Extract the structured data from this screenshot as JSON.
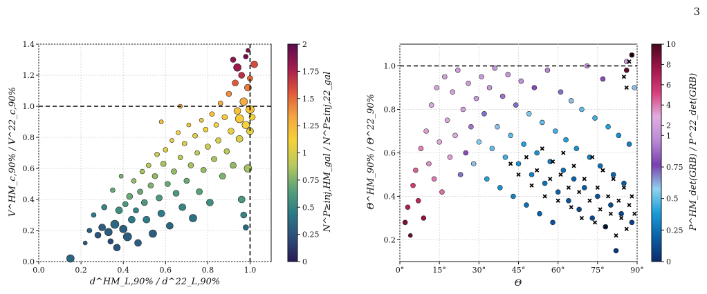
{
  "page": {
    "number": "3"
  },
  "chart_data": [
    {
      "type": "scatter",
      "title": "",
      "xlabel": "d^HM_L,90% / d^22_L,90%",
      "ylabel": "V^HM_c,90% / V^22_c,90%",
      "xlim": [
        0.0,
        1.1
      ],
      "ylim": [
        0.0,
        1.4
      ],
      "xticks": [
        "0.0",
        "0.2",
        "0.4",
        "0.6",
        "0.8",
        "1.0"
      ],
      "yticks": [
        "0.0",
        "0.2",
        "0.4",
        "0.6",
        "0.8",
        "1.0",
        "1.2",
        "1.4"
      ],
      "reference_lines": {
        "x": 1.0,
        "y": 1.0,
        "style": "dashed"
      },
      "grid": true,
      "colorbar": {
        "label": "N^P≥inj,HM_gal / N^P≥inj,22_gal",
        "range": [
          0,
          2
        ],
        "ticks": [
          "0",
          "0.25",
          "0.5",
          "0.75",
          "1",
          "1.25",
          "1.5",
          "1.75",
          "2"
        ],
        "colormap": [
          "#2a1a55",
          "#2d4d7a",
          "#2b7a86",
          "#5aa37a",
          "#b9c95b",
          "#f6d23a",
          "#f4a640",
          "#e0573b",
          "#a21c4e",
          "#5c0b4d"
        ]
      },
      "points": [
        [
          0.15,
          0.02,
          0.35,
          9
        ],
        [
          0.22,
          0.12,
          0.3,
          4
        ],
        [
          0.24,
          0.2,
          0.3,
          5
        ],
        [
          0.28,
          0.17,
          0.25,
          7
        ],
        [
          0.3,
          0.22,
          0.3,
          8
        ],
        [
          0.33,
          0.19,
          0.3,
          9
        ],
        [
          0.34,
          0.13,
          0.2,
          6
        ],
        [
          0.36,
          0.24,
          0.35,
          10
        ],
        [
          0.37,
          0.09,
          0.25,
          8
        ],
        [
          0.38,
          0.33,
          0.55,
          8
        ],
        [
          0.4,
          0.21,
          0.3,
          9
        ],
        [
          0.41,
          0.37,
          0.6,
          6
        ],
        [
          0.42,
          0.16,
          0.3,
          10
        ],
        [
          0.43,
          0.42,
          0.7,
          7
        ],
        [
          0.44,
          0.27,
          0.45,
          8
        ],
        [
          0.45,
          0.52,
          0.8,
          5
        ],
        [
          0.46,
          0.33,
          0.5,
          6
        ],
        [
          0.47,
          0.12,
          0.3,
          8
        ],
        [
          0.48,
          0.45,
          0.7,
          6
        ],
        [
          0.49,
          0.58,
          0.85,
          5
        ],
        [
          0.5,
          0.38,
          0.6,
          7
        ],
        [
          0.51,
          0.27,
          0.45,
          8
        ],
        [
          0.52,
          0.62,
          0.9,
          5
        ],
        [
          0.53,
          0.49,
          0.75,
          6
        ],
        [
          0.54,
          0.18,
          0.3,
          9
        ],
        [
          0.55,
          0.55,
          0.8,
          6
        ],
        [
          0.56,
          0.69,
          0.95,
          5
        ],
        [
          0.57,
          0.41,
          0.6,
          7
        ],
        [
          0.58,
          0.31,
          0.45,
          8
        ],
        [
          0.59,
          0.63,
          0.85,
          6
        ],
        [
          0.6,
          0.72,
          1.0,
          5
        ],
        [
          0.61,
          0.5,
          0.7,
          6
        ],
        [
          0.62,
          0.23,
          0.35,
          8
        ],
        [
          0.63,
          0.78,
          1.05,
          4
        ],
        [
          0.64,
          0.58,
          0.8,
          6
        ],
        [
          0.65,
          0.44,
          0.6,
          7
        ],
        [
          0.66,
          0.83,
          1.1,
          4
        ],
        [
          0.67,
          0.67,
          0.9,
          5
        ],
        [
          0.68,
          0.35,
          0.5,
          8
        ],
        [
          0.69,
          0.76,
          1.0,
          5
        ],
        [
          0.7,
          0.52,
          0.7,
          6
        ],
        [
          0.71,
          0.88,
          1.15,
          4
        ],
        [
          0.72,
          0.62,
          0.85,
          6
        ],
        [
          0.73,
          0.28,
          0.4,
          9
        ],
        [
          0.74,
          0.81,
          1.05,
          5
        ],
        [
          0.75,
          0.7,
          0.9,
          5
        ],
        [
          0.76,
          0.45,
          0.65,
          7
        ],
        [
          0.77,
          0.91,
          1.15,
          4
        ],
        [
          0.78,
          0.59,
          0.8,
          6
        ],
        [
          0.79,
          0.85,
          1.1,
          5
        ],
        [
          0.8,
          0.74,
          0.95,
          6
        ],
        [
          0.81,
          0.38,
          0.55,
          8
        ],
        [
          0.82,
          0.95,
          1.2,
          5
        ],
        [
          0.83,
          0.66,
          0.85,
          6
        ],
        [
          0.84,
          0.88,
          1.1,
          5
        ],
        [
          0.85,
          0.78,
          1.0,
          6
        ],
        [
          0.86,
          1.02,
          1.3,
          5
        ],
        [
          0.87,
          0.55,
          0.75,
          7
        ],
        [
          0.88,
          0.93,
          1.15,
          6
        ],
        [
          0.89,
          0.71,
          0.9,
          6
        ],
        [
          0.9,
          1.08,
          1.4,
          6
        ],
        [
          0.91,
          0.84,
          1.05,
          7
        ],
        [
          0.92,
          0.62,
          0.8,
          7
        ],
        [
          0.93,
          1.15,
          1.55,
          7
        ],
        [
          0.94,
          0.97,
          1.2,
          8
        ],
        [
          0.95,
          0.79,
          1.0,
          8
        ],
        [
          0.96,
          1.2,
          1.7,
          7
        ],
        [
          0.97,
          1.03,
          1.3,
          9
        ],
        [
          0.98,
          0.88,
          1.1,
          9
        ],
        [
          0.99,
          1.12,
          1.45,
          8
        ],
        [
          0.96,
          0.4,
          0.6,
          8
        ],
        [
          0.97,
          0.3,
          0.5,
          7
        ],
        [
          0.98,
          0.22,
          0.35,
          6
        ],
        [
          0.99,
          0.6,
          0.85,
          9
        ],
        [
          0.95,
          0.92,
          1.15,
          10
        ],
        [
          0.94,
          1.25,
          1.8,
          9
        ],
        [
          1.0,
          1.18,
          1.5,
          6
        ],
        [
          1.02,
          1.27,
          1.6,
          8
        ],
        [
          0.98,
          1.32,
          1.95,
          5
        ],
        [
          0.92,
          1.3,
          1.85,
          6
        ],
        [
          1.0,
          0.98,
          1.2,
          10
        ],
        [
          1.01,
          0.93,
          1.1,
          7
        ],
        [
          1.0,
          0.84,
          1.05,
          8
        ],
        [
          0.99,
          1.36,
          1.9,
          4
        ],
        [
          0.26,
          0.3,
          0.45,
          5
        ],
        [
          0.31,
          0.35,
          0.5,
          6
        ],
        [
          0.35,
          0.46,
          0.7,
          5
        ],
        [
          0.39,
          0.55,
          0.75,
          4
        ],
        [
          0.58,
          0.9,
          1.2,
          4
        ],
        [
          0.67,
          1.0,
          1.3,
          4
        ]
      ]
    },
    {
      "type": "scatter",
      "title": "",
      "xlabel": "Θ",
      "ylabel": "Θ^HM_90% / Θ^22_90%",
      "xlim": [
        0,
        90
      ],
      "ylim": [
        0.1,
        1.1
      ],
      "xticks": [
        "0°",
        "15°",
        "30°",
        "45°",
        "60°",
        "75°",
        "90°"
      ],
      "yticks": [
        "0.2",
        "0.4",
        "0.6",
        "0.8",
        "1.0"
      ],
      "reference_lines": {
        "y": 1.0,
        "style": "dashed"
      },
      "grid": true,
      "colorbar": {
        "label": "P^HM_det(GRB) / P^22_det(GRB)",
        "range": [
          0,
          10
        ],
        "ticks": [
          "0",
          "0.25",
          "0.5",
          "0.75",
          "1",
          "2",
          "4",
          "6",
          "8",
          "10"
        ],
        "colormap": [
          "#0a2a6b",
          "#0a5fa6",
          "#1a9bd8",
          "#8fd3f0",
          "#7a3fb0",
          "#b98ad6",
          "#e0aee0",
          "#d83d7a",
          "#a0154a",
          "#4a0820"
        ]
      },
      "points": [
        [
          2,
          0.28,
          8.5,
          5
        ],
        [
          3,
          0.35,
          7.0,
          5
        ],
        [
          4,
          0.22,
          9.0,
          4
        ],
        [
          5,
          0.45,
          5.5,
          5
        ],
        [
          6,
          0.52,
          4.5,
          5
        ],
        [
          7,
          0.38,
          6.5,
          5
        ],
        [
          8,
          0.62,
          3.8,
          5
        ],
        [
          9,
          0.3,
          8.0,
          5
        ],
        [
          10,
          0.7,
          3.2,
          5
        ],
        [
          11,
          0.55,
          3.5,
          5
        ],
        [
          12,
          0.82,
          2.5,
          5
        ],
        [
          13,
          0.48,
          4.0,
          5
        ],
        [
          14,
          0.9,
          2.2,
          5
        ],
        [
          15,
          0.65,
          3.0,
          5
        ],
        [
          16,
          0.42,
          4.2,
          5
        ],
        [
          17,
          0.95,
          2.0,
          5
        ],
        [
          18,
          0.75,
          2.6,
          5
        ],
        [
          19,
          0.58,
          3.2,
          5
        ],
        [
          20,
          0.88,
          2.1,
          5
        ],
        [
          21,
          0.68,
          2.8,
          5
        ],
        [
          22,
          0.98,
          1.8,
          5
        ],
        [
          23,
          0.5,
          0.7,
          5
        ],
        [
          24,
          0.8,
          2.0,
          5
        ],
        [
          25,
          0.6,
          0.8,
          5
        ],
        [
          26,
          0.92,
          1.7,
          5
        ],
        [
          27,
          0.72,
          0.9,
          5
        ],
        [
          28,
          0.55,
          0.6,
          5
        ],
        [
          29,
          0.85,
          1.5,
          5
        ],
        [
          30,
          0.65,
          0.55,
          5
        ],
        [
          31,
          0.95,
          1.6,
          5
        ],
        [
          32,
          0.78,
          0.7,
          5
        ],
        [
          33,
          0.48,
          0.4,
          5
        ],
        [
          34,
          0.9,
          1.3,
          5
        ],
        [
          35,
          0.62,
          0.5,
          5
        ],
        [
          36,
          0.99,
          1.5,
          5
        ],
        [
          37,
          0.72,
          0.6,
          5
        ],
        [
          38,
          0.44,
          0.35,
          5
        ],
        [
          39,
          0.86,
          0.9,
          5
        ],
        [
          40,
          0.58,
          0.45,
          5
        ],
        [
          41,
          0.96,
          1.2,
          5
        ],
        [
          42,
          0.68,
          0.5,
          5
        ],
        [
          43,
          0.4,
          0.3,
          5
        ],
        [
          44,
          0.82,
          0.7,
          5
        ],
        [
          45,
          0.55,
          0.35,
          5
        ],
        [
          46,
          0.93,
          1.1,
          5
        ],
        [
          47,
          0.64,
          0.4,
          5
        ],
        [
          48,
          0.36,
          0.25,
          5
        ],
        [
          49,
          0.78,
          0.55,
          5
        ],
        [
          50,
          0.5,
          0.3,
          5
        ],
        [
          51,
          0.9,
          0.8,
          5
        ],
        [
          52,
          0.6,
          0.35,
          5
        ],
        [
          53,
          0.32,
          0.2,
          5
        ],
        [
          54,
          0.74,
          0.5,
          5
        ],
        [
          55,
          0.46,
          0.25,
          5
        ],
        [
          56,
          0.98,
          0.95,
          5
        ],
        [
          57,
          0.56,
          0.3,
          5
        ],
        [
          58,
          0.28,
          0.15,
          5
        ],
        [
          59,
          0.7,
          0.45,
          5
        ],
        [
          60,
          0.42,
          0.2,
          5
        ],
        [
          61,
          0.88,
          0.7,
          5
        ],
        [
          62,
          0.52,
          0.25,
          5
        ],
        [
          63,
          0.66,
          0.4,
          5
        ],
        [
          64,
          0.38,
          0.15,
          5
        ],
        [
          65,
          0.84,
          0.6,
          5
        ],
        [
          66,
          0.48,
          0.2,
          5
        ],
        [
          67,
          0.62,
          0.35,
          5
        ],
        [
          68,
          0.34,
          0.12,
          5
        ],
        [
          69,
          0.8,
          0.5,
          5
        ],
        [
          70,
          0.44,
          0.18,
          5
        ],
        [
          71,
          1.0,
          1.0,
          5
        ],
        [
          72,
          0.58,
          0.3,
          5
        ],
        [
          73,
          0.3,
          0.1,
          5
        ],
        [
          74,
          0.76,
          0.45,
          5
        ],
        [
          75,
          0.4,
          0.15,
          5
        ],
        [
          76,
          0.54,
          0.25,
          5
        ],
        [
          77,
          0.94,
          0.8,
          5
        ],
        [
          78,
          0.26,
          0.08,
          5
        ],
        [
          79,
          0.72,
          0.4,
          5
        ],
        [
          80,
          0.36,
          0.12,
          5
        ],
        [
          81,
          0.5,
          0.2,
          5
        ],
        [
          82,
          0.15,
          0.05,
          5
        ],
        [
          83,
          0.68,
          0.35,
          5
        ],
        [
          84,
          0.32,
          0.1,
          5
        ],
        [
          85,
          0.46,
          0.18,
          5
        ],
        [
          86,
          1.02,
          1.5,
          5
        ],
        [
          87,
          0.64,
          0.3,
          5
        ],
        [
          88,
          0.28,
          0.08,
          5
        ],
        [
          89,
          0.9,
          0.6,
          5
        ],
        [
          86,
          0.98,
          9.5,
          5
        ],
        [
          88,
          1.05,
          9.0,
          5
        ]
      ],
      "cross_points": [
        [
          42,
          0.55
        ],
        [
          45,
          0.5
        ],
        [
          48,
          0.58
        ],
        [
          50,
          0.45
        ],
        [
          52,
          0.52
        ],
        [
          54,
          0.62
        ],
        [
          55,
          0.4
        ],
        [
          57,
          0.48
        ],
        [
          58,
          0.56
        ],
        [
          60,
          0.38
        ],
        [
          61,
          0.5
        ],
        [
          62,
          0.6
        ],
        [
          64,
          0.44
        ],
        [
          65,
          0.35
        ],
        [
          66,
          0.54
        ],
        [
          68,
          0.42
        ],
        [
          69,
          0.3
        ],
        [
          70,
          0.48
        ],
        [
          72,
          0.38
        ],
        [
          73,
          0.58
        ],
        [
          74,
          0.28
        ],
        [
          75,
          0.44
        ],
        [
          76,
          0.34
        ],
        [
          77,
          0.52
        ],
        [
          78,
          0.26
        ],
        [
          79,
          0.4
        ],
        [
          80,
          0.32
        ],
        [
          81,
          0.48
        ],
        [
          82,
          0.22
        ],
        [
          83,
          0.38
        ],
        [
          84,
          0.3
        ],
        [
          85,
          0.44
        ],
        [
          86,
          0.25
        ],
        [
          87,
          0.36
        ],
        [
          88,
          0.4
        ],
        [
          89,
          0.32
        ],
        [
          85,
          0.95
        ],
        [
          87,
          1.02
        ],
        [
          88,
          1.05
        ],
        [
          86,
          0.9
        ]
      ]
    }
  ]
}
